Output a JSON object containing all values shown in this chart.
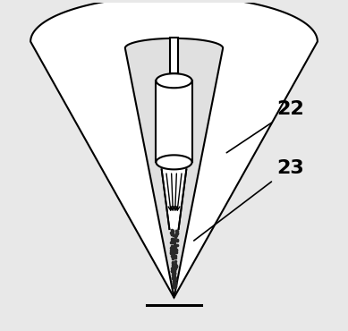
{
  "bg_color": "#e8e8e8",
  "line_color": "#000000",
  "label_22": "22",
  "label_23": "23",
  "label_fontsize": 16,
  "fig_width": 3.89,
  "fig_height": 3.7,
  "dpi": 100
}
